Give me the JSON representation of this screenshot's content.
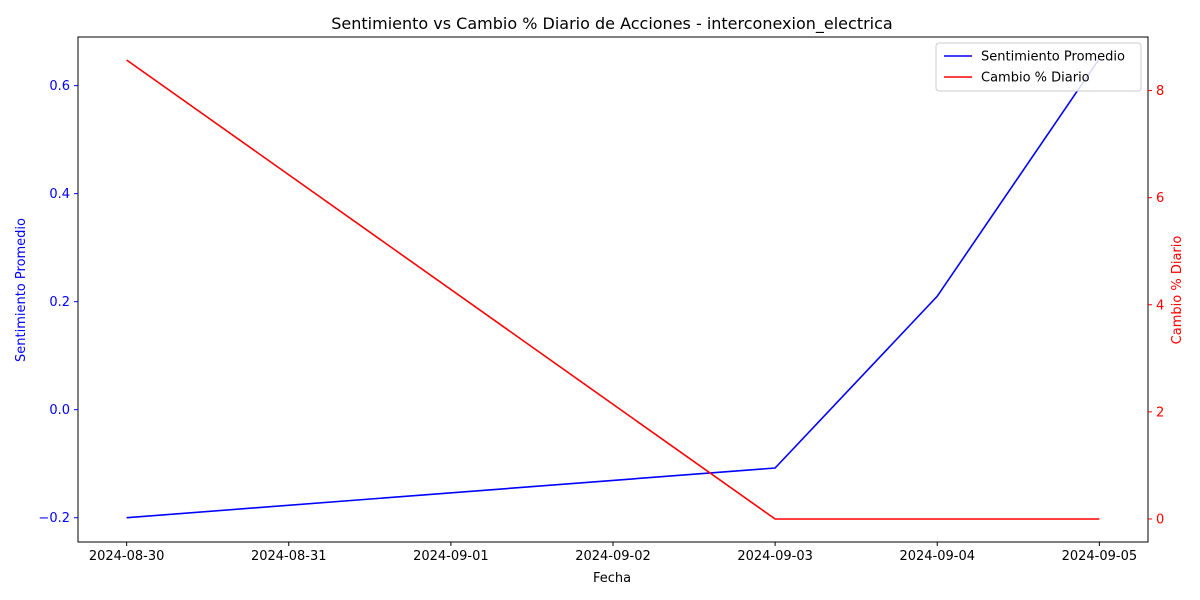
{
  "chart_data": {
    "type": "line",
    "title": "Sentimiento vs Cambio % Diario de Acciones - interconexion_electrica",
    "xlabel": "Fecha",
    "ylabel_left": "Sentimiento Promedio",
    "ylabel_right": "Cambio % Diario",
    "x": [
      "2024-08-30",
      "2024-09-03",
      "2024-09-04",
      "2024-09-05"
    ],
    "x_ticks": [
      "2024-08-30",
      "2024-08-31",
      "2024-09-01",
      "2024-09-02",
      "2024-09-03",
      "2024-09-04",
      "2024-09-05"
    ],
    "ylim_left": [
      -0.245,
      0.69
    ],
    "yticks_left": [
      "−0.2",
      "0.0",
      "0.2",
      "0.4",
      "0.6"
    ],
    "yticks_left_values": [
      -0.2,
      0.0,
      0.2,
      0.4,
      0.6
    ],
    "ylim_right": [
      -0.43,
      9.0
    ],
    "yticks_right": [
      "0",
      "2",
      "4",
      "6",
      "8"
    ],
    "yticks_right_values": [
      0,
      2,
      4,
      6,
      8
    ],
    "series": [
      {
        "name": "Sentimiento Promedio",
        "axis": "left",
        "color": "#0000ff",
        "values": [
          -0.2,
          -0.108,
          0.21,
          0.65
        ]
      },
      {
        "name": "Cambio % Diario",
        "axis": "right",
        "color": "#ff0000",
        "values": [
          8.57,
          0.0,
          0.0,
          0.0
        ]
      }
    ],
    "legend_position": "top-right",
    "grid": false
  }
}
